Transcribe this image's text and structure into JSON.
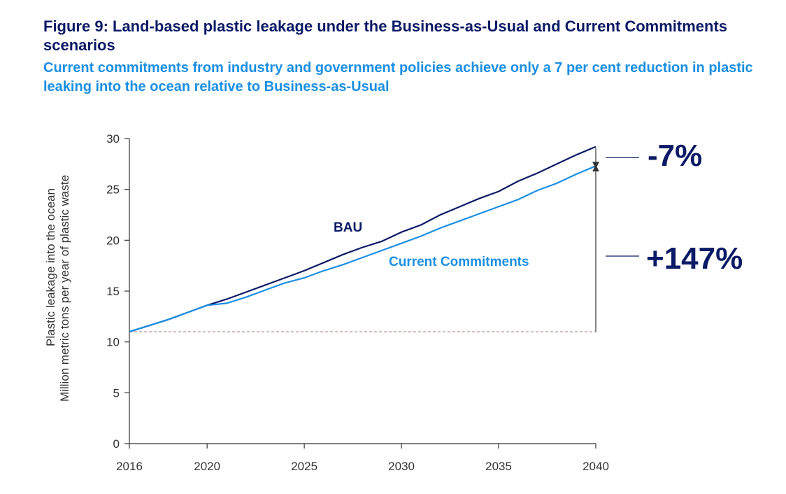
{
  "figure": {
    "title": "Figure 9: Land-based plastic leakage under the Business-as-Usual and Current Commitments scenarios",
    "subtitle": "Current commitments from industry and government policies achieve only a 7 per cent reduction in plastic leaking into the ocean relative to Business-as-Usual"
  },
  "colors": {
    "bau": "#0b1a66",
    "cc": "#1a8fe3",
    "axis": "#333333",
    "baseline": "#a07070"
  },
  "chart_data": {
    "type": "line",
    "title": "Figure 9: Land-based plastic leakage under the Business-as-Usual and Current Commitments scenarios",
    "xlabel": "",
    "ylabel_line1": "Plastic leakage into the ocean",
    "ylabel_line2": "Million metric tons per year of plastic waste",
    "xlim": [
      2016,
      2040
    ],
    "ylim": [
      0,
      30
    ],
    "x_ticks": [
      2016,
      2020,
      2025,
      2030,
      2035,
      2040
    ],
    "y_ticks": [
      0,
      5,
      10,
      15,
      20,
      25,
      30
    ],
    "x": [
      2016,
      2017,
      2018,
      2019,
      2020,
      2021,
      2022,
      2023,
      2024,
      2025,
      2026,
      2027,
      2028,
      2029,
      2030,
      2031,
      2032,
      2033,
      2034,
      2035,
      2036,
      2037,
      2038,
      2039,
      2040
    ],
    "series": [
      {
        "name": "BAU",
        "key": "bau",
        "values": [
          11.0,
          11.6,
          12.2,
          12.9,
          13.6,
          14.2,
          14.9,
          15.6,
          16.3,
          17.0,
          17.8,
          18.6,
          19.3,
          19.9,
          20.8,
          21.5,
          22.5,
          23.3,
          24.1,
          24.8,
          25.8,
          26.6,
          27.5,
          28.4,
          29.2
        ]
      },
      {
        "name": "Current Commitments",
        "key": "cc",
        "values": [
          11.0,
          11.6,
          12.2,
          12.9,
          13.6,
          13.8,
          14.4,
          15.1,
          15.8,
          16.3,
          17.0,
          17.6,
          18.3,
          19.0,
          19.7,
          20.4,
          21.2,
          21.9,
          22.6,
          23.3,
          24.0,
          24.9,
          25.6,
          26.5,
          27.3
        ]
      }
    ],
    "baseline_value": 11.0,
    "annotations": {
      "bau_label": "BAU",
      "cc_label": "Current Commitments",
      "reduction_label": "-7%",
      "increase_label": "+147%"
    }
  }
}
